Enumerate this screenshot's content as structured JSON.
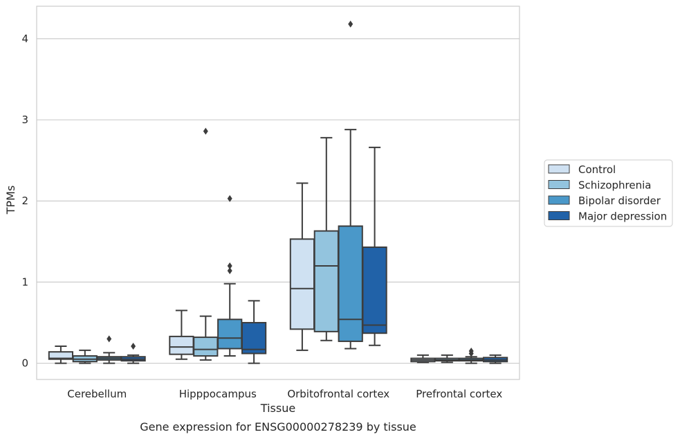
{
  "chart_data": {
    "type": "box",
    "caption": "Gene expression for ENSG00000278239 by tissue",
    "xlabel": "Tissue",
    "ylabel": "TPMs",
    "ylim": [
      -0.2,
      4.4
    ],
    "yticks": [
      0,
      1,
      2,
      3,
      4
    ],
    "grid": true,
    "legend_position": "right",
    "categories": [
      "Cerebellum",
      "Hipppocampus",
      "Orbitofrontal cortex",
      "Prefrontal cortex"
    ],
    "series": [
      {
        "name": "Control",
        "color": "#cfe1f2",
        "boxes": [
          {
            "whislo": 0.0,
            "q1": 0.05,
            "med": 0.06,
            "q3": 0.14,
            "whishi": 0.21,
            "fliers": []
          },
          {
            "whislo": 0.05,
            "q1": 0.11,
            "med": 0.2,
            "q3": 0.33,
            "whishi": 0.65,
            "fliers": []
          },
          {
            "whislo": 0.16,
            "q1": 0.42,
            "med": 0.92,
            "q3": 1.53,
            "whishi": 2.22,
            "fliers": []
          },
          {
            "whislo": 0.01,
            "q1": 0.02,
            "med": 0.04,
            "q3": 0.06,
            "whishi": 0.1,
            "fliers": []
          }
        ]
      },
      {
        "name": "Schizophrenia",
        "color": "#93c4de",
        "boxes": [
          {
            "whislo": 0.0,
            "q1": 0.02,
            "med": 0.05,
            "q3": 0.09,
            "whishi": 0.16,
            "fliers": []
          },
          {
            "whislo": 0.04,
            "q1": 0.09,
            "med": 0.17,
            "q3": 0.32,
            "whishi": 0.58,
            "fliers": [
              2.86
            ]
          },
          {
            "whislo": 0.28,
            "q1": 0.39,
            "med": 1.2,
            "q3": 1.63,
            "whishi": 2.78,
            "fliers": []
          },
          {
            "whislo": 0.01,
            "q1": 0.03,
            "med": 0.04,
            "q3": 0.06,
            "whishi": 0.1,
            "fliers": []
          }
        ]
      },
      {
        "name": "Bipolar disorder",
        "color": "#4a98c9",
        "boxes": [
          {
            "whislo": 0.0,
            "q1": 0.04,
            "med": 0.06,
            "q3": 0.08,
            "whishi": 0.13,
            "fliers": [
              0.3
            ]
          },
          {
            "whislo": 0.09,
            "q1": 0.18,
            "med": 0.31,
            "q3": 0.54,
            "whishi": 0.98,
            "fliers": [
              1.14,
              1.2,
              2.03
            ]
          },
          {
            "whislo": 0.18,
            "q1": 0.27,
            "med": 0.54,
            "q3": 1.69,
            "whishi": 2.88,
            "fliers": [
              4.18
            ]
          },
          {
            "whislo": 0.0,
            "q1": 0.03,
            "med": 0.04,
            "q3": 0.06,
            "whishi": 0.08,
            "fliers": [
              0.12,
              0.15
            ]
          }
        ]
      },
      {
        "name": "Major depression",
        "color": "#2162a8",
        "boxes": [
          {
            "whislo": 0.0,
            "q1": 0.03,
            "med": 0.05,
            "q3": 0.08,
            "whishi": 0.1,
            "fliers": [
              0.21
            ]
          },
          {
            "whislo": 0.0,
            "q1": 0.12,
            "med": 0.17,
            "q3": 0.5,
            "whishi": 0.77,
            "fliers": []
          },
          {
            "whislo": 0.22,
            "q1": 0.37,
            "med": 0.47,
            "q3": 1.43,
            "whishi": 2.66,
            "fliers": []
          },
          {
            "whislo": 0.0,
            "q1": 0.02,
            "med": 0.04,
            "q3": 0.07,
            "whishi": 0.1,
            "fliers": []
          }
        ]
      }
    ]
  }
}
